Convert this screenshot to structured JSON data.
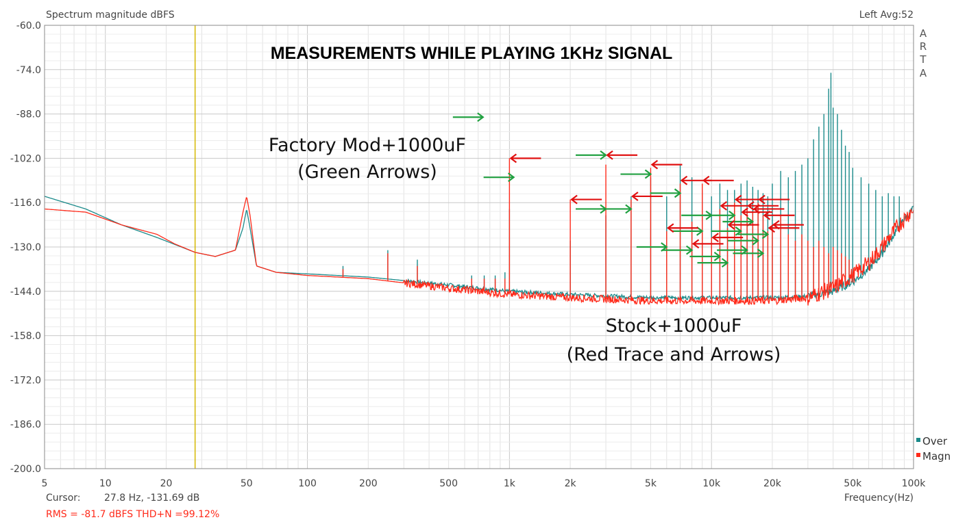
{
  "header": {
    "left_label": "Spectrum magnitude dBFS",
    "right_label": "Left  Avg:52"
  },
  "brand_letters": [
    "A",
    "R",
    "T",
    "A"
  ],
  "annotations": {
    "title": "MEASUREMENTS WHILE PLAYING 1KHz SIGNAL",
    "factory_line1": "Factory Mod+1000uF",
    "factory_line2": "(Green Arrows)",
    "stock_line1": "Stock+1000uF",
    "stock_line2": "(Red Trace and Arrows)"
  },
  "footer": {
    "cursor_label": "Cursor:",
    "cursor_value": "27.8 Hz, -131.69 dB",
    "rms_text": "RMS =  -81.7 dBFS  THD+N =99.12%"
  },
  "legend": [
    {
      "name": "Over",
      "color": "#1a8a8a"
    },
    {
      "name": "Magn",
      "color": "#ff2a1a"
    }
  ],
  "colors": {
    "over": "#1a8a8a",
    "magn": "#ff2a1a",
    "cursor": "#d4b800",
    "grid": "#d8d8d8",
    "green_arrow": "#20a040",
    "red_arrow": "#e01010"
  },
  "chart_data": {
    "type": "line",
    "xscale": "log",
    "xlim": [
      5,
      100000
    ],
    "ylim": [
      -200,
      -60
    ],
    "xlabel": "Frequency(Hz)",
    "ylabel": "",
    "grid": true,
    "legend_position": "bottom-right",
    "cursor_frequency_hz": 27.8,
    "x_ticks": [
      {
        "v": 5,
        "label": "5"
      },
      {
        "v": 10,
        "label": "10"
      },
      {
        "v": 20,
        "label": "20"
      },
      {
        "v": 50,
        "label": "50"
      },
      {
        "v": 100,
        "label": "100"
      },
      {
        "v": 200,
        "label": "200"
      },
      {
        "v": 500,
        "label": "500"
      },
      {
        "v": 1000,
        "label": "1k"
      },
      {
        "v": 2000,
        "label": "2k"
      },
      {
        "v": 5000,
        "label": "5k"
      },
      {
        "v": 10000,
        "label": "10k"
      },
      {
        "v": 20000,
        "label": "20k"
      },
      {
        "v": 50000,
        "label": "50k"
      },
      {
        "v": 100000,
        "label": "100k"
      }
    ],
    "y_ticks": [
      {
        "v": -60,
        "label": "-60.0"
      },
      {
        "v": -74,
        "label": "-74.0"
      },
      {
        "v": -88,
        "label": "-88.0"
      },
      {
        "v": -102,
        "label": "-102.0"
      },
      {
        "v": -116,
        "label": "-116.0"
      },
      {
        "v": -130,
        "label": "-130.0"
      },
      {
        "v": -144,
        "label": "-144.0"
      },
      {
        "v": -158,
        "label": "-158.0"
      },
      {
        "v": -172,
        "label": "-172.0"
      },
      {
        "v": -186,
        "label": "-186.0"
      },
      {
        "v": -200,
        "label": "-200.0"
      }
    ],
    "series": [
      {
        "name": "Over",
        "floor": [
          [
            5,
            -114
          ],
          [
            8,
            -118
          ],
          [
            12,
            -123
          ],
          [
            18,
            -127
          ],
          [
            27.8,
            -131.7
          ],
          [
            35,
            -133
          ],
          [
            44,
            -131
          ],
          [
            48,
            -124
          ],
          [
            50,
            -118
          ],
          [
            52,
            -124
          ],
          [
            56,
            -136
          ],
          [
            70,
            -138
          ],
          [
            100,
            -138.5
          ],
          [
            200,
            -139.5
          ],
          [
            500,
            -142
          ],
          [
            1000,
            -144
          ],
          [
            2000,
            -145
          ],
          [
            5000,
            -146
          ],
          [
            10000,
            -146
          ],
          [
            20000,
            -146
          ],
          [
            30000,
            -145.5
          ],
          [
            40000,
            -144
          ],
          [
            50000,
            -141
          ],
          [
            60000,
            -137
          ],
          [
            70000,
            -132
          ],
          [
            80000,
            -126
          ],
          [
            90000,
            -121
          ],
          [
            100000,
            -118
          ]
        ],
        "peaks": [
          [
            150,
            -136
          ],
          [
            250,
            -131
          ],
          [
            350,
            -134
          ],
          [
            650,
            -139
          ],
          [
            750,
            -139
          ],
          [
            850,
            -139
          ],
          [
            950,
            -138
          ],
          [
            1000,
            -118
          ],
          [
            2000,
            -128
          ],
          [
            3000,
            -120
          ],
          [
            4000,
            -114
          ],
          [
            5000,
            -108
          ],
          [
            6000,
            -114
          ],
          [
            7000,
            -104
          ],
          [
            8000,
            -108
          ],
          [
            9000,
            -112
          ],
          [
            10000,
            -114
          ],
          [
            11000,
            -110
          ],
          [
            12000,
            -112
          ],
          [
            13000,
            -112
          ],
          [
            14000,
            -110
          ],
          [
            15000,
            -109
          ],
          [
            16000,
            -111
          ],
          [
            17000,
            -112
          ],
          [
            18000,
            -113
          ],
          [
            19000,
            -114
          ],
          [
            20000,
            -110
          ],
          [
            22000,
            -106
          ],
          [
            24000,
            -108
          ],
          [
            26000,
            -106
          ],
          [
            28000,
            -104
          ],
          [
            30000,
            -102
          ],
          [
            32000,
            -96
          ],
          [
            34000,
            -92
          ],
          [
            36000,
            -88
          ],
          [
            38000,
            -80
          ],
          [
            39000,
            -75
          ],
          [
            40000,
            -86
          ],
          [
            42000,
            -88
          ],
          [
            44000,
            -93
          ],
          [
            46000,
            -98
          ],
          [
            48000,
            -100
          ],
          [
            50000,
            -105
          ],
          [
            55000,
            -108
          ],
          [
            60000,
            -110
          ],
          [
            65000,
            -112
          ],
          [
            70000,
            -114
          ],
          [
            75000,
            -113
          ],
          [
            80000,
            -114
          ],
          [
            85000,
            -114
          ]
        ]
      },
      {
        "name": "Magn",
        "floor": [
          [
            5,
            -118
          ],
          [
            8,
            -119
          ],
          [
            12,
            -123
          ],
          [
            18,
            -126
          ],
          [
            22,
            -129
          ],
          [
            27.8,
            -131.7
          ],
          [
            35,
            -133
          ],
          [
            44,
            -131
          ],
          [
            48,
            -119
          ],
          [
            50,
            -114
          ],
          [
            52,
            -120
          ],
          [
            56,
            -136
          ],
          [
            70,
            -138
          ],
          [
            100,
            -139
          ],
          [
            200,
            -140
          ],
          [
            500,
            -143
          ],
          [
            1000,
            -145
          ],
          [
            2000,
            -146
          ],
          [
            5000,
            -147
          ],
          [
            10000,
            -147
          ],
          [
            20000,
            -147
          ],
          [
            30000,
            -146
          ],
          [
            40000,
            -143
          ],
          [
            50000,
            -139
          ],
          [
            60000,
            -135
          ],
          [
            70000,
            -130
          ],
          [
            80000,
            -125
          ],
          [
            90000,
            -121
          ],
          [
            100000,
            -118
          ]
        ],
        "peaks": [
          [
            150,
            -137
          ],
          [
            250,
            -132
          ],
          [
            350,
            -136
          ],
          [
            650,
            -140
          ],
          [
            750,
            -140
          ],
          [
            850,
            -140
          ],
          [
            950,
            -140
          ],
          [
            1000,
            -102
          ],
          [
            2000,
            -115
          ],
          [
            3000,
            -104
          ],
          [
            4000,
            -115
          ],
          [
            5000,
            -105
          ],
          [
            6000,
            -125
          ],
          [
            7000,
            -110
          ],
          [
            8000,
            -122
          ],
          [
            9000,
            -110
          ],
          [
            10000,
            -127
          ],
          [
            11000,
            -118
          ],
          [
            12000,
            -124
          ],
          [
            13000,
            -116
          ],
          [
            14000,
            -120
          ],
          [
            15000,
            -118
          ],
          [
            16000,
            -119
          ],
          [
            17000,
            -116
          ],
          [
            18000,
            -120
          ],
          [
            19000,
            -125
          ],
          [
            20000,
            -124
          ],
          [
            22000,
            -120
          ],
          [
            24000,
            -126
          ],
          [
            26000,
            -128
          ],
          [
            28000,
            -126
          ],
          [
            30000,
            -128
          ],
          [
            32000,
            -130
          ],
          [
            34000,
            -128
          ],
          [
            36000,
            -130
          ],
          [
            38000,
            -132
          ],
          [
            40000,
            -130
          ],
          [
            42000,
            -131
          ],
          [
            44000,
            -132
          ],
          [
            46000,
            -133
          ],
          [
            48000,
            -134
          ]
        ]
      }
    ],
    "green_arrows": [
      [
        740,
        -89
      ],
      [
        1050,
        -108
      ],
      [
        3000,
        -101
      ],
      [
        3000,
        -118
      ],
      [
        4000,
        -118
      ],
      [
        5000,
        -107
      ],
      [
        6000,
        -130
      ],
      [
        7000,
        -113
      ],
      [
        8000,
        -131
      ],
      [
        9000,
        -125
      ],
      [
        10000,
        -120
      ],
      [
        11000,
        -133
      ],
      [
        12000,
        -135
      ],
      [
        13000,
        -120
      ],
      [
        14000,
        -125
      ],
      [
        15000,
        -131
      ],
      [
        16000,
        -122
      ],
      [
        17000,
        -128
      ],
      [
        18000,
        -132
      ],
      [
        19000,
        -126
      ]
    ],
    "red_arrows": [
      [
        1000,
        -102
      ],
      [
        2000,
        -115
      ],
      [
        3000,
        -101
      ],
      [
        4000,
        -114
      ],
      [
        5000,
        -104
      ],
      [
        6000,
        -124
      ],
      [
        7000,
        -109
      ],
      [
        8000,
        -129
      ],
      [
        9000,
        -109
      ],
      [
        10000,
        -127
      ],
      [
        11000,
        -117
      ],
      [
        12000,
        -123
      ],
      [
        13000,
        -115
      ],
      [
        14000,
        -119
      ],
      [
        15000,
        -117
      ],
      [
        16000,
        -118
      ],
      [
        17000,
        -115
      ],
      [
        18000,
        -120
      ],
      [
        19000,
        -124
      ],
      [
        20000,
        -123
      ]
    ]
  }
}
